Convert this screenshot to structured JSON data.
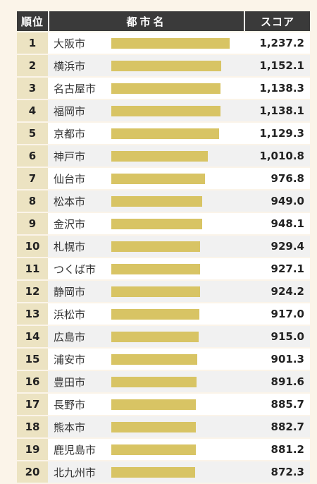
{
  "header": {
    "rank_label": "順位",
    "city_label": "都市名",
    "score_label": "スコア"
  },
  "colors": {
    "header_bg": "#3a3a3a",
    "rank_bg": "#ece3c2",
    "bar": "#d8c464",
    "page_bg": "#fbf4e9"
  },
  "chart_data": {
    "type": "bar",
    "orientation": "horizontal",
    "categories": [
      "大阪市",
      "横浜市",
      "名古屋市",
      "福岡市",
      "京都市",
      "神戸市",
      "仙台市",
      "松本市",
      "金沢市",
      "札幌市",
      "つくば市",
      "静岡市",
      "浜松市",
      "広島市",
      "浦安市",
      "豊田市",
      "長野市",
      "熊本市",
      "鹿児島市",
      "北九州市"
    ],
    "ranks": [
      "1",
      "2",
      "3",
      "4",
      "5",
      "6",
      "7",
      "8",
      "9",
      "10",
      "11",
      "12",
      "13",
      "14",
      "15",
      "16",
      "17",
      "18",
      "19",
      "20"
    ],
    "values": [
      1237.2,
      1152.1,
      1138.3,
      1138.1,
      1129.3,
      1010.8,
      976.8,
      949.0,
      948.1,
      929.4,
      927.1,
      924.2,
      917.0,
      915.0,
      901.3,
      891.6,
      885.7,
      882.7,
      881.2,
      872.3
    ],
    "value_labels": [
      "1,237.2",
      "1,152.1",
      "1,138.3",
      "1,138.1",
      "1,129.3",
      "1,010.8",
      "976.8",
      "949.0",
      "948.1",
      "929.4",
      "927.1",
      "924.2",
      "917.0",
      "915.0",
      "901.3",
      "891.6",
      "885.7",
      "882.7",
      "881.2",
      "872.3"
    ],
    "xlim": [
      0,
      1237.2
    ]
  }
}
